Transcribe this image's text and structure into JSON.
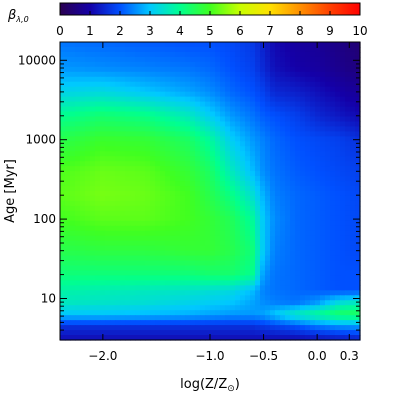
{
  "chart_data": {
    "type": "heatmap",
    "quantity_label": "β",
    "quantity_subscript": "λ,0",
    "colorbar": {
      "range": [
        0,
        10
      ],
      "ticks": [
        "0",
        "1",
        "2",
        "3",
        "4",
        "5",
        "6",
        "7",
        "8",
        "9",
        "10"
      ],
      "colormap": [
        "#2a0050",
        "#1400a8",
        "#0050ff",
        "#00c8ff",
        "#00ff90",
        "#40ff20",
        "#c8ff00",
        "#ffe000",
        "#ff9000",
        "#ff4000",
        "#ff0000"
      ]
    },
    "xlabel": "log(Z/Z⊙)",
    "xlabel_main": "log(Z/Z",
    "xlabel_sun": "⊙",
    "xlabel_close": ")",
    "xlim": [
      -2.4,
      0.4
    ],
    "xticks": [
      {
        "value": -2.0,
        "label": "−2.0"
      },
      {
        "value": -1.0,
        "label": "−1.0"
      },
      {
        "value": -0.5,
        "label": "−0.5"
      },
      {
        "value": 0.0,
        "label": "0.0"
      },
      {
        "value": 0.3,
        "label": "0.3"
      }
    ],
    "ylabel": "Age [Myr]",
    "ylabel_main": "Age",
    "ylabel_unit": "Myr",
    "yscale": "log",
    "ylim": [
      3,
      17000
    ],
    "yticks": [
      {
        "value": 10,
        "label": "10"
      },
      {
        "value": 100,
        "label": "100"
      },
      {
        "value": 1000,
        "label": "1000"
      },
      {
        "value": 10000,
        "label": "10000"
      }
    ],
    "z_grid": {
      "x": [
        -2.4,
        -2.0,
        -1.6,
        -1.2,
        -1.0,
        -0.8,
        -0.6,
        -0.5,
        -0.4,
        -0.2,
        0.0,
        0.2,
        0.4
      ],
      "log_age": [
        0.5,
        0.65,
        0.8,
        0.95,
        1.1,
        1.3,
        1.6,
        2.0,
        2.3,
        2.6,
        3.0,
        3.3,
        3.6,
        3.9,
        4.23
      ],
      "values": [
        [
          1.2,
          1.2,
          1.2,
          1.2,
          1.2,
          1.2,
          1.2,
          1.2,
          1.2,
          1.2,
          1.3,
          1.4,
          1.5
        ],
        [
          1.6,
          1.6,
          1.6,
          1.6,
          1.6,
          1.6,
          1.6,
          1.7,
          1.8,
          2.0,
          2.3,
          2.5,
          2.6
        ],
        [
          3.0,
          3.0,
          2.9,
          2.8,
          2.7,
          2.6,
          2.6,
          2.7,
          3.0,
          3.6,
          4.0,
          4.4,
          4.5
        ],
        [
          3.6,
          3.5,
          3.4,
          3.2,
          3.1,
          3.0,
          2.7,
          2.5,
          2.4,
          2.3,
          2.6,
          3.3,
          3.6
        ],
        [
          3.8,
          3.7,
          3.6,
          3.5,
          3.4,
          3.3,
          2.9,
          2.4,
          2.3,
          2.2,
          2.1,
          2.0,
          2.0
        ],
        [
          4.2,
          4.2,
          4.2,
          4.2,
          4.3,
          4.3,
          4.0,
          2.6,
          2.3,
          2.2,
          2.1,
          2.0,
          2.0
        ],
        [
          4.6,
          4.7,
          4.7,
          4.8,
          4.8,
          4.6,
          4.2,
          3.0,
          2.4,
          2.2,
          2.1,
          2.0,
          1.9
        ],
        [
          5.0,
          5.2,
          5.2,
          5.0,
          4.8,
          4.5,
          3.9,
          3.0,
          2.5,
          2.2,
          2.1,
          2.0,
          1.9
        ],
        [
          5.2,
          5.4,
          5.3,
          5.0,
          4.6,
          4.1,
          3.4,
          2.8,
          2.4,
          2.2,
          2.1,
          2.0,
          1.9
        ],
        [
          5.1,
          5.3,
          5.2,
          4.8,
          4.4,
          3.6,
          2.9,
          2.5,
          2.3,
          2.1,
          2.0,
          1.9,
          1.8
        ],
        [
          4.6,
          4.9,
          4.8,
          4.4,
          3.9,
          3.1,
          2.6,
          2.4,
          2.2,
          2.0,
          1.9,
          1.8,
          1.6
        ],
        [
          4.0,
          4.3,
          4.1,
          3.6,
          3.1,
          2.6,
          2.3,
          2.1,
          2.0,
          1.8,
          1.5,
          1.3,
          1.1
        ],
        [
          3.2,
          3.3,
          3.0,
          2.7,
          2.5,
          2.2,
          2.0,
          1.8,
          1.5,
          1.4,
          1.2,
          1.0,
          0.8
        ],
        [
          2.6,
          2.5,
          2.4,
          2.3,
          2.2,
          2.0,
          1.8,
          1.5,
          1.2,
          1.0,
          0.9,
          0.7,
          0.5
        ],
        [
          2.3,
          2.2,
          2.1,
          2.0,
          2.0,
          1.9,
          1.7,
          1.4,
          1.1,
          0.9,
          0.8,
          0.6,
          0.4
        ]
      ]
    }
  }
}
